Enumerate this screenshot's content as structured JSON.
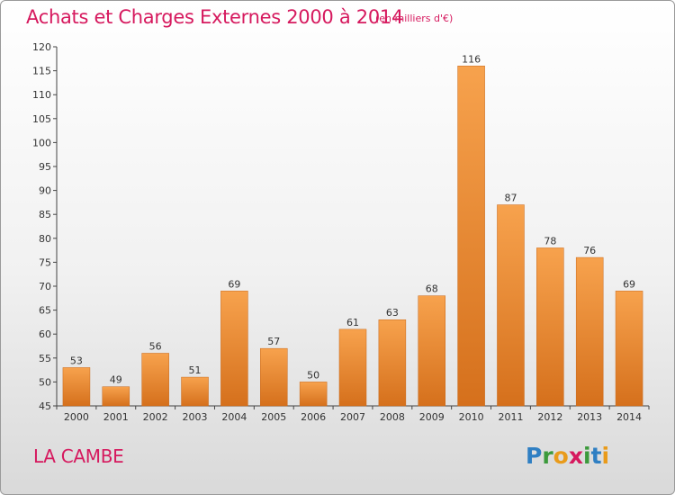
{
  "chart_data": {
    "type": "bar",
    "title": "Achats et Charges Externes 2000 à 2014",
    "subtitle": "(en milliers d'€)",
    "categories": [
      "2000",
      "2001",
      "2002",
      "2003",
      "2004",
      "2005",
      "2006",
      "2007",
      "2008",
      "2009",
      "2010",
      "2011",
      "2012",
      "2013",
      "2014"
    ],
    "values": [
      53,
      49,
      56,
      51,
      69,
      57,
      50,
      61,
      63,
      68,
      116,
      87,
      78,
      76,
      69
    ],
    "xlabel": "",
    "ylabel": "",
    "ylim": [
      45,
      120
    ],
    "yticks": [
      45,
      50,
      55,
      60,
      65,
      70,
      75,
      80,
      85,
      90,
      95,
      100,
      105,
      110,
      115,
      120
    ],
    "grid": false,
    "bar_color": "#e8892b"
  },
  "commune": "LA CAMBE",
  "logo": {
    "letters": [
      "P",
      "r",
      "o",
      "x",
      "i",
      "t",
      "i"
    ]
  }
}
